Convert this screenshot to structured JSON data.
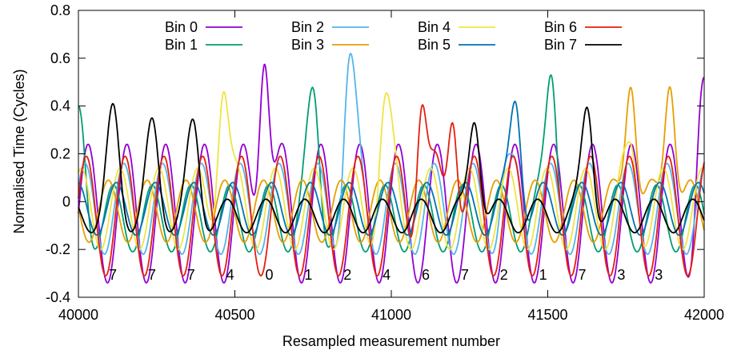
{
  "chart_data": {
    "type": "line",
    "title": "",
    "xlabel": "Resampled measurement number",
    "ylabel": "Normalised Time (Cycles)",
    "xlim": [
      40000,
      42000
    ],
    "ylim": [
      -0.4,
      0.8
    ],
    "x_ticks": [
      40000,
      40500,
      41000,
      41500,
      42000
    ],
    "y_ticks": [
      -0.4,
      -0.2,
      0,
      0.2,
      0.4,
      0.6,
      0.8
    ],
    "y_tick_labels": [
      "-0.4",
      "-0.2",
      "0",
      "0.2",
      "0.4",
      "0.6",
      "0.8"
    ],
    "grid": false,
    "legend_position": "top",
    "cycle_period": 124,
    "series": [
      {
        "name": "Bin 0",
        "color": "#9400d3",
        "amplitude": 0.29,
        "phase": 0.0,
        "base": -0.05,
        "peaks": [
          {
            "x": 40595,
            "y": 0.575
          },
          {
            "x": 42000,
            "y": 0.52
          }
        ]
      },
      {
        "name": "Bin 1",
        "color": "#009e73",
        "amplitude": 0.14,
        "phase": 2.2,
        "base": -0.07,
        "peaks": [
          {
            "x": 40000,
            "y": 0.4
          },
          {
            "x": 40748,
            "y": 0.478
          },
          {
            "x": 41510,
            "y": 0.53
          }
        ]
      },
      {
        "name": "Bin 2",
        "color": "#56b4e9",
        "amplitude": 0.19,
        "phase": 0.5,
        "base": -0.03,
        "peaks": [
          {
            "x": 40870,
            "y": 0.62
          },
          {
            "x": 41380,
            "y": 0.2
          }
        ]
      },
      {
        "name": "Bin 3",
        "color": "#e69f00",
        "amplitude": 0.13,
        "phase": 3.0,
        "base": -0.04,
        "peaks": [
          {
            "x": 41765,
            "y": 0.478
          },
          {
            "x": 41890,
            "y": 0.48
          }
        ]
      },
      {
        "name": "Bin 4",
        "color": "#f0e442",
        "amplitude": 0.17,
        "phase": 1.1,
        "base": -0.03,
        "peaks": [
          {
            "x": 40465,
            "y": 0.46
          },
          {
            "x": 40985,
            "y": 0.455
          },
          {
            "x": 41760,
            "y": 0.25
          }
        ]
      },
      {
        "name": "Bin 5",
        "color": "#0072b2",
        "amplitude": 0.11,
        "phase": 1.7,
        "base": -0.03,
        "peaks": [
          {
            "x": 41395,
            "y": 0.42
          }
        ]
      },
      {
        "name": "Bin 6",
        "color": "#e51e10",
        "amplitude": 0.25,
        "phase": 0.3,
        "base": -0.06,
        "peaks": [
          {
            "x": 41100,
            "y": 0.405
          },
          {
            "x": 41195,
            "y": 0.33
          }
        ]
      },
      {
        "name": "Bin 7",
        "color": "#000000",
        "amplitude": 0.07,
        "phase": 2.6,
        "base": -0.06,
        "peaks": [
          {
            "x": 40110,
            "y": 0.41
          },
          {
            "x": 40235,
            "y": 0.35
          },
          {
            "x": 40365,
            "y": 0.345
          },
          {
            "x": 41265,
            "y": 0.33
          },
          {
            "x": 41625,
            "y": 0.395
          }
        ]
      }
    ],
    "bin_annotations": [
      {
        "x": 40110,
        "label": "7"
      },
      {
        "x": 40235,
        "label": "7"
      },
      {
        "x": 40360,
        "label": "7"
      },
      {
        "x": 40485,
        "label": "4"
      },
      {
        "x": 40610,
        "label": "0"
      },
      {
        "x": 40735,
        "label": "1"
      },
      {
        "x": 40860,
        "label": "2"
      },
      {
        "x": 40985,
        "label": "4"
      },
      {
        "x": 41110,
        "label": "6"
      },
      {
        "x": 41235,
        "label": "7"
      },
      {
        "x": 41360,
        "label": "2"
      },
      {
        "x": 41485,
        "label": "1"
      },
      {
        "x": 41610,
        "label": "7"
      },
      {
        "x": 41735,
        "label": "3"
      },
      {
        "x": 41855,
        "label": "3"
      }
    ]
  }
}
